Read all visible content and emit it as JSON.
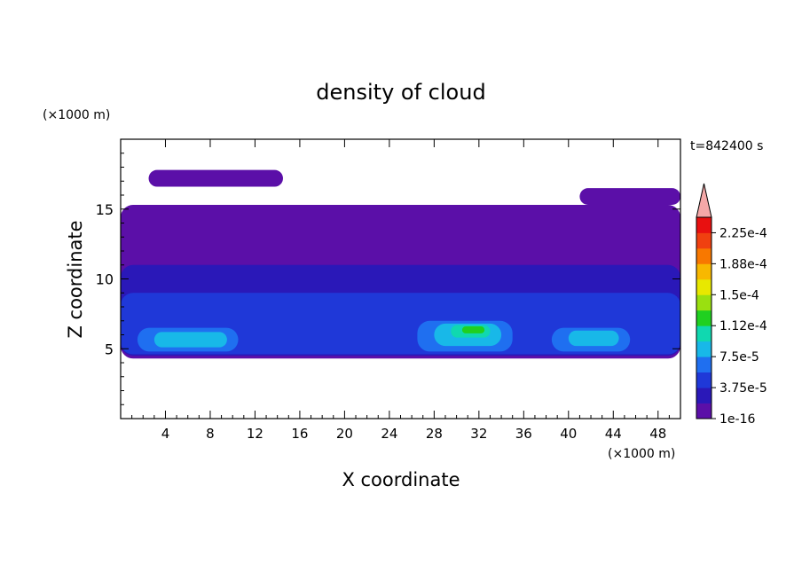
{
  "chart_data": {
    "type": "heatmap",
    "title": "density of cloud",
    "xlabel": "X coordinate",
    "ylabel": "Z coordinate",
    "x_unit": "(×1000 m)",
    "y_unit": "(×1000 m)",
    "time_label": "t=842400 s",
    "xlim": [
      0,
      50
    ],
    "ylim": [
      0,
      20
    ],
    "x_ticks": [
      4,
      8,
      12,
      16,
      20,
      24,
      28,
      32,
      36,
      40,
      44,
      48
    ],
    "y_ticks": [
      5,
      10,
      15
    ],
    "colorbar": {
      "labels": [
        "1e-16",
        "3.75e-5",
        "7.5e-5",
        "1.12e-4",
        "1.5e-4",
        "1.88e-4",
        "2.25e-4"
      ],
      "colors": [
        "#5b0fa8",
        "#2a18b8",
        "#1f38d8",
        "#1f6ff0",
        "#18b8e8",
        "#10d8b0",
        "#20d020",
        "#9ae010",
        "#e8e800",
        "#f8b800",
        "#f87800",
        "#f04010",
        "#e81010"
      ],
      "extend_color": "#f4a8a8"
    },
    "regions": [
      {
        "level": 0,
        "x": [
          0,
          50
        ],
        "z": [
          4.3,
          15.3
        ]
      },
      {
        "level": 0,
        "x": [
          2.5,
          14.5
        ],
        "z": [
          16.6,
          17.8
        ]
      },
      {
        "level": 0,
        "x": [
          41,
          50
        ],
        "z": [
          15.3,
          16.5
        ]
      },
      {
        "level": 1,
        "x": [
          0,
          50
        ],
        "z": [
          4.5,
          11
        ]
      },
      {
        "level": 2,
        "x": [
          0,
          50
        ],
        "z": [
          4.6,
          9
        ]
      },
      {
        "level": 3,
        "x": [
          1.5,
          10.5
        ],
        "z": [
          4.8,
          6.5
        ]
      },
      {
        "level": 3,
        "x": [
          26.5,
          35
        ],
        "z": [
          4.8,
          7
        ]
      },
      {
        "level": 3,
        "x": [
          38.5,
          45.5
        ],
        "z": [
          4.8,
          6.5
        ]
      },
      {
        "level": 4,
        "x": [
          3,
          9.5
        ],
        "z": [
          5.1,
          6.2
        ]
      },
      {
        "level": 4,
        "x": [
          28,
          34
        ],
        "z": [
          5.2,
          6.8
        ]
      },
      {
        "level": 4,
        "x": [
          40,
          44.5
        ],
        "z": [
          5.2,
          6.3
        ]
      },
      {
        "level": 5,
        "x": [
          29.5,
          33
        ],
        "z": [
          5.8,
          6.7
        ]
      },
      {
        "level": 6,
        "x": [
          30.5,
          32.5
        ],
        "z": [
          6.1,
          6.6
        ]
      }
    ]
  }
}
